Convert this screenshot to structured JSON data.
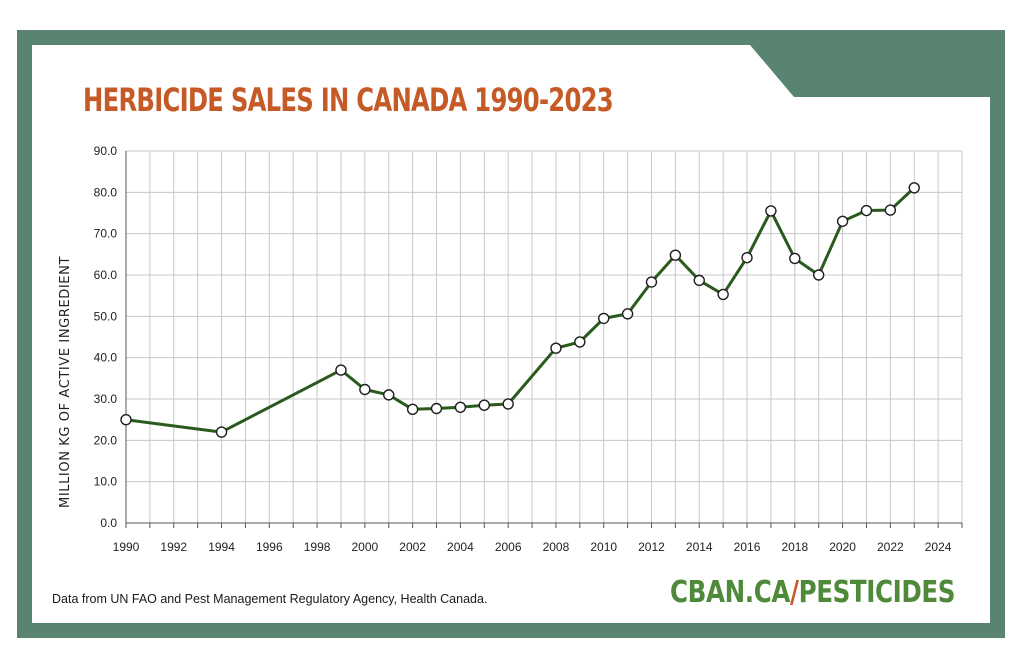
{
  "colors": {
    "frame": "#5a8472",
    "title": "#c65a27",
    "line": "#2b5a1e",
    "brand_green": "#4e8a3a",
    "brand_slash": "#c65a27"
  },
  "source_note": "Data from UN FAO and Pest Management Regulatory Agency, Health Canada.",
  "brand": {
    "left": "CBAN.CA",
    "slash": "/",
    "right": "PESTICIDES"
  },
  "chart_data": {
    "type": "line",
    "title": "HERBICIDE SALES IN CANADA 1990-2023",
    "xlabel": "",
    "ylabel": "MILLION KG OF ACTIVE INGREDIENT",
    "xlim": [
      1990,
      2025
    ],
    "ylim": [
      0,
      90
    ],
    "grid": true,
    "x_ticks": [
      "1990",
      "1992",
      "1994",
      "1996",
      "1998",
      "2000",
      "2002",
      "2004",
      "2006",
      "2008",
      "2010",
      "2012",
      "2014",
      "2016",
      "2018",
      "2020",
      "2022",
      "2024"
    ],
    "y_ticks": [
      "0.0",
      "10.0",
      "20.0",
      "30.0",
      "40.0",
      "50.0",
      "60.0",
      "70.0",
      "80.0",
      "90.0"
    ],
    "series": [
      {
        "x": [
          1990,
          1994,
          1999,
          2000,
          2001,
          2002,
          2003,
          2004,
          2005,
          2006,
          2008,
          2009,
          2010,
          2011,
          2012,
          2013,
          2014,
          2015,
          2016,
          2017,
          2018,
          2019,
          2020,
          2021,
          2022,
          2023
        ],
        "values": [
          25.0,
          22.0,
          37.0,
          32.3,
          31.0,
          27.5,
          27.7,
          28.0,
          28.5,
          28.8,
          42.3,
          43.8,
          49.5,
          50.6,
          58.3,
          64.8,
          58.7,
          55.3,
          64.2,
          75.5,
          64.0,
          60.0,
          73.0,
          75.6,
          75.7,
          81.1
        ]
      }
    ]
  }
}
